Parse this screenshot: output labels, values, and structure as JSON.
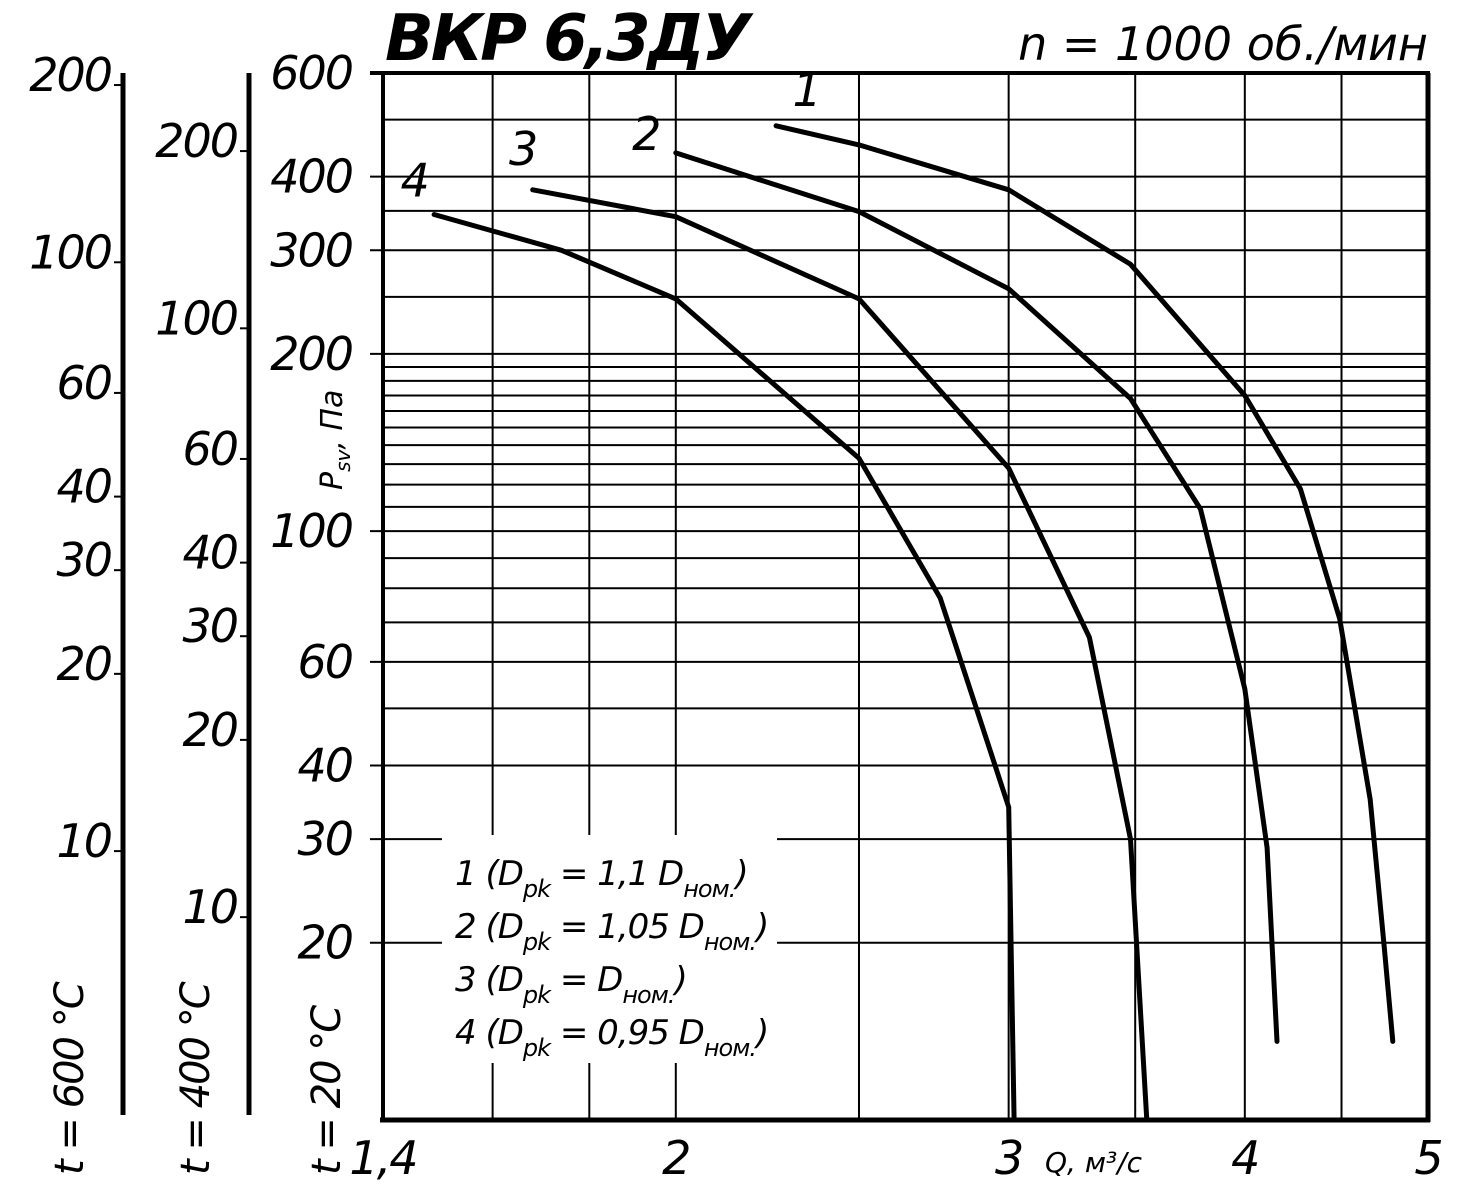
{
  "chart_data": {
    "type": "line",
    "title": "ВКР 6,3ДУ",
    "subtitle": "n = 1000 об./мин",
    "x_label": "Q, м³/с",
    "y_label": [
      "P",
      "sv",
      ", Па"
    ],
    "y_axis_label": "t = 20 °C",
    "log_x": true,
    "log_y": true,
    "grid": true,
    "color": "#000000",
    "xlim": [
      1.4,
      5
    ],
    "xticks": [
      {
        "value": 1.4,
        "label": "1,4"
      },
      2,
      3,
      4,
      5
    ],
    "xminor": [
      1.6,
      1.8,
      2.5,
      3.5,
      4.5
    ],
    "ylim": [
      10,
      600
    ],
    "yticks": [
      20,
      30,
      40,
      60,
      100,
      200,
      300,
      400,
      600
    ],
    "yminor": [
      50,
      70,
      80,
      90,
      110,
      120,
      130,
      140,
      150,
      160,
      170,
      180,
      190,
      250,
      350,
      500
    ],
    "extra_axes": [
      {
        "label": "t = 400 °C",
        "ylim": [
          4.35,
          261
        ],
        "yticks": [
          10,
          20,
          30,
          40,
          60,
          100,
          200
        ]
      },
      {
        "label": "t = 600 °C",
        "ylim": [
          3.36,
          201.6
        ],
        "yticks": [
          10,
          20,
          30,
          40,
          60,
          100,
          200
        ]
      }
    ],
    "series": [
      {
        "name": "1",
        "x": [
          2.26,
          2.5,
          3.0,
          3.48,
          4.0,
          4.28,
          4.49,
          4.66,
          4.74,
          4.79
        ],
        "values": [
          488,
          453,
          380,
          284,
          170,
          118,
          71,
          35,
          19.7,
          13.6
        ]
      },
      {
        "name": "2",
        "x": [
          2.0,
          2.5,
          3.0,
          3.48,
          3.79,
          4.0,
          4.11,
          4.16
        ],
        "values": [
          439,
          349,
          258,
          168,
          109,
          54,
          29,
          13.6
        ]
      },
      {
        "name": "3",
        "x": [
          1.68,
          2.0,
          2.5,
          3.0,
          3.31,
          3.48,
          3.55
        ],
        "values": [
          380,
          342,
          248,
          128,
          66,
          30,
          10
        ]
      },
      {
        "name": "4",
        "x": [
          1.49,
          1.74,
          2.0,
          2.5,
          2.76,
          3.0,
          3.02
        ],
        "values": [
          345,
          300,
          248,
          133,
          77,
          34,
          10
        ]
      }
    ],
    "legend_texts": [
      [
        "1 (D",
        "pk",
        " = 1,1 D",
        "ном.",
        ")"
      ],
      [
        "2 (D",
        "pk",
        " = 1,05 D",
        "ном.",
        ")"
      ],
      [
        "3 (D",
        "pk",
        " = D",
        "ном.",
        ")"
      ],
      [
        "4 (D",
        "pk",
        " = 0,95 D",
        "ном.",
        ")"
      ]
    ]
  }
}
